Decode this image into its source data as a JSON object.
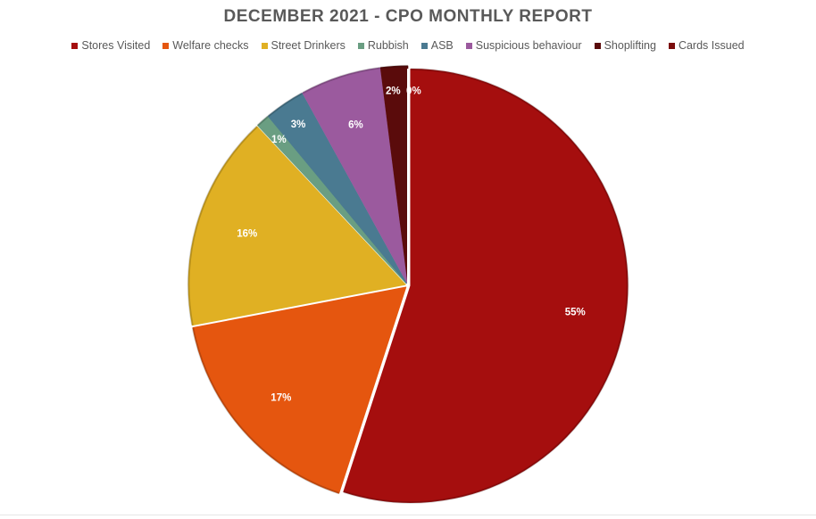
{
  "chart_data": {
    "type": "pie",
    "title": "DECEMBER 2021 - CPO MONTHLY REPORT",
    "legend_position": "top",
    "slices": [
      {
        "name": "Stores Visited",
        "value": 55,
        "label": "55%",
        "color": "#A50E0E"
      },
      {
        "name": "Welfare checks",
        "value": 17,
        "label": "17%",
        "color": "#E5560F"
      },
      {
        "name": "Street Drinkers",
        "value": 16,
        "label": "16%",
        "color": "#E0B023"
      },
      {
        "name": "Rubbish",
        "value": 1,
        "label": "1%",
        "color": "#6A9E82"
      },
      {
        "name": "ASB",
        "value": 3,
        "label": "3%",
        "color": "#4A7A91"
      },
      {
        "name": "Suspicious behaviour",
        "value": 6,
        "label": "6%",
        "color": "#9B5A9E"
      },
      {
        "name": "Shoplifting",
        "value": 2,
        "label": "2%",
        "color": "#5A0B0B"
      },
      {
        "name": "Cards Issued",
        "value": 0,
        "label": "0%",
        "color": "#7A0C0C"
      }
    ]
  }
}
